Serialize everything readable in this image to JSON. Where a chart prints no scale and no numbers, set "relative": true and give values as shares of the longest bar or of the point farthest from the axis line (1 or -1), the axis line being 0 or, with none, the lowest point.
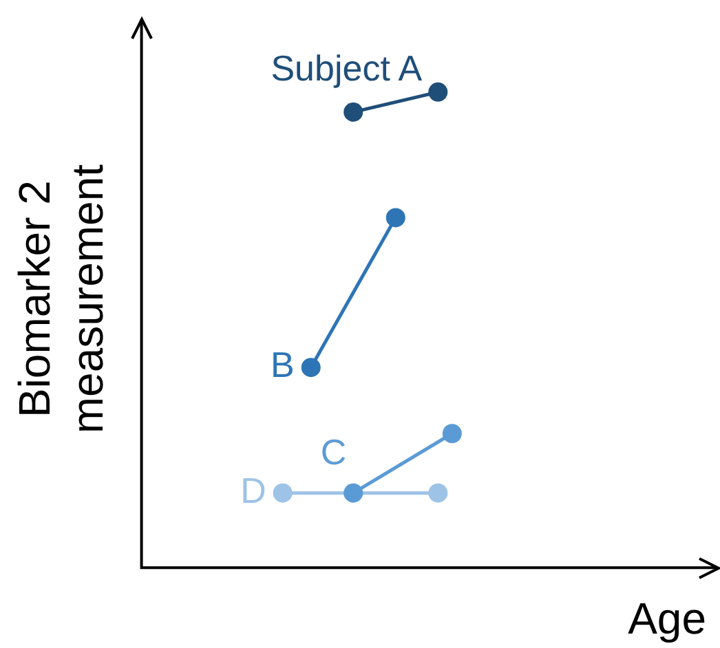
{
  "chart_data": {
    "type": "line",
    "relative": true,
    "xlabel": "Age",
    "ylabel": "Biomarker 2\nmeasurement",
    "marker": "circle",
    "line_style": "solid",
    "categories": [
      null,
      null,
      null,
      null,
      null,
      null,
      null,
      null,
      null,
      null,
      null,
      null,
      null,
      null,
      null,
      null,
      null,
      null,
      null,
      null,
      null,
      null,
      null,
      null,
      null,
      null,
      null,
      null,
      null,
      null,
      null,
      null,
      null,
      null,
      null,
      null,
      null,
      null,
      null,
      null,
      null
    ],
    "series": [
      {
        "name": "Subject A",
        "color": "#1f4e79",
        "values": [
          null,
          null,
          null,
          null,
          null,
          null,
          null,
          null,
          null,
          null,
          null,
          null,
          null,
          null,
          null,
          0.958,
          null,
          null,
          null,
          null,
          null,
          1,
          null,
          null,
          null,
          null,
          null,
          null,
          null,
          null,
          null,
          null,
          null,
          null,
          null,
          null,
          null,
          null,
          null,
          null,
          null
        ]
      },
      {
        "name": "B",
        "color": "#2e75b6",
        "values": [
          null,
          null,
          null,
          null,
          null,
          null,
          null,
          null,
          null,
          null,
          null,
          null,
          0.421,
          null,
          null,
          null,
          null,
          null,
          0.736,
          null,
          null,
          null,
          null,
          null,
          null,
          null,
          null,
          null,
          null,
          null,
          null,
          null,
          null,
          null,
          null,
          null,
          null,
          null,
          null,
          null,
          null
        ]
      },
      {
        "name": "C",
        "color": "#5b9bd5",
        "values": [
          null,
          null,
          null,
          null,
          null,
          null,
          null,
          null,
          null,
          null,
          null,
          null,
          null,
          null,
          null,
          0.157,
          null,
          null,
          null,
          null,
          null,
          null,
          0.282,
          null,
          null,
          null,
          null,
          null,
          null,
          null,
          null,
          null,
          null,
          null,
          null,
          null,
          null,
          null,
          null,
          null,
          null
        ]
      },
      {
        "name": "D",
        "color": "#9dc3e6",
        "values": [
          null,
          null,
          null,
          null,
          null,
          null,
          null,
          null,
          null,
          null,
          0.157,
          null,
          null,
          null,
          null,
          null,
          null,
          null,
          null,
          null,
          null,
          0.157,
          null,
          null,
          null,
          null,
          null,
          null,
          null,
          null,
          null,
          null,
          null,
          null,
          null,
          null,
          null,
          null,
          null,
          null,
          null
        ]
      }
    ]
  }
}
